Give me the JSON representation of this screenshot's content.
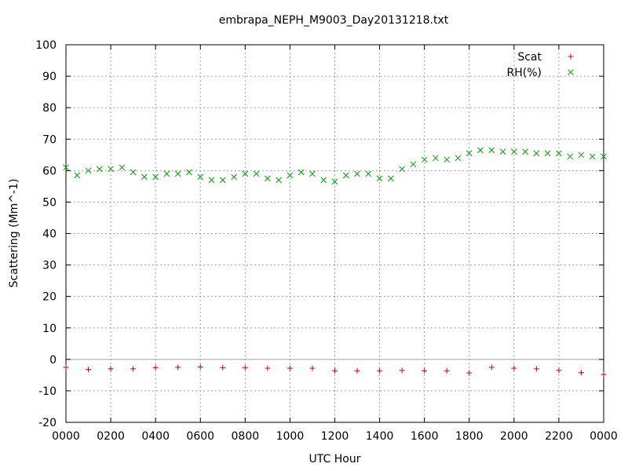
{
  "chart_data": {
    "type": "scatter",
    "title": "embrapa_NEPH_M9003_Day20131218.txt",
    "xlabel": "UTC Hour",
    "ylabel": "Scattering (Mm^-1)",
    "xlim": [
      0,
      24
    ],
    "ylim": [
      -20,
      100
    ],
    "x_tick_labels": [
      "0000",
      "0200",
      "0400",
      "0600",
      "0800",
      "1000",
      "1200",
      "1400",
      "1600",
      "1800",
      "2000",
      "2200",
      "0000"
    ],
    "y_ticks": [
      -20,
      -10,
      0,
      10,
      20,
      30,
      40,
      50,
      60,
      70,
      80,
      90,
      100
    ],
    "grid": true,
    "legend_position": "top-right",
    "series": [
      {
        "name": "Scat",
        "marker": "plus",
        "color": "#d00000",
        "x": [
          0,
          1,
          2,
          3,
          4,
          5,
          6,
          7,
          8,
          9,
          10,
          11,
          12,
          13,
          14,
          15,
          16,
          17,
          18,
          19,
          20,
          21,
          22,
          23,
          24
        ],
        "y": [
          -2.5,
          -3.2,
          -3.0,
          -3.0,
          -2.6,
          -2.5,
          -2.4,
          -2.6,
          -2.6,
          -2.8,
          -2.8,
          -2.8,
          -3.6,
          -3.6,
          -3.6,
          -3.5,
          -3.6,
          -3.6,
          -4.3,
          -2.5,
          -2.8,
          -3.0,
          -3.5,
          -4.2,
          -4.8
        ]
      },
      {
        "name": "RH(%)",
        "marker": "x",
        "color": "#00a000",
        "x": [
          0,
          0.5,
          1,
          1.5,
          2,
          2.5,
          3,
          3.5,
          4,
          4.5,
          5,
          5.5,
          6,
          6.5,
          7,
          7.5,
          8,
          8.5,
          9,
          9.5,
          10,
          10.5,
          11,
          11.5,
          12,
          12.5,
          13,
          13.5,
          14,
          14.5,
          15,
          15.5,
          16,
          16.5,
          17,
          17.5,
          18,
          18.5,
          19,
          19.5,
          20,
          20.5,
          21,
          21.5,
          22,
          22.5,
          23,
          23.5,
          24
        ],
        "y": [
          61,
          58.5,
          60,
          60.5,
          60.5,
          61,
          59.5,
          58,
          58,
          59,
          59,
          59.5,
          58,
          57,
          57,
          58,
          59,
          59,
          57.5,
          57,
          58.5,
          59.5,
          59,
          57,
          56.5,
          58.5,
          59,
          59,
          57.5,
          57.5,
          60.5,
          62,
          63.5,
          64,
          63.5,
          64,
          65.5,
          66.5,
          66.5,
          66,
          66,
          66,
          65.5,
          65.5,
          65.5,
          64.5,
          65,
          64.5,
          64.5
        ]
      }
    ]
  }
}
